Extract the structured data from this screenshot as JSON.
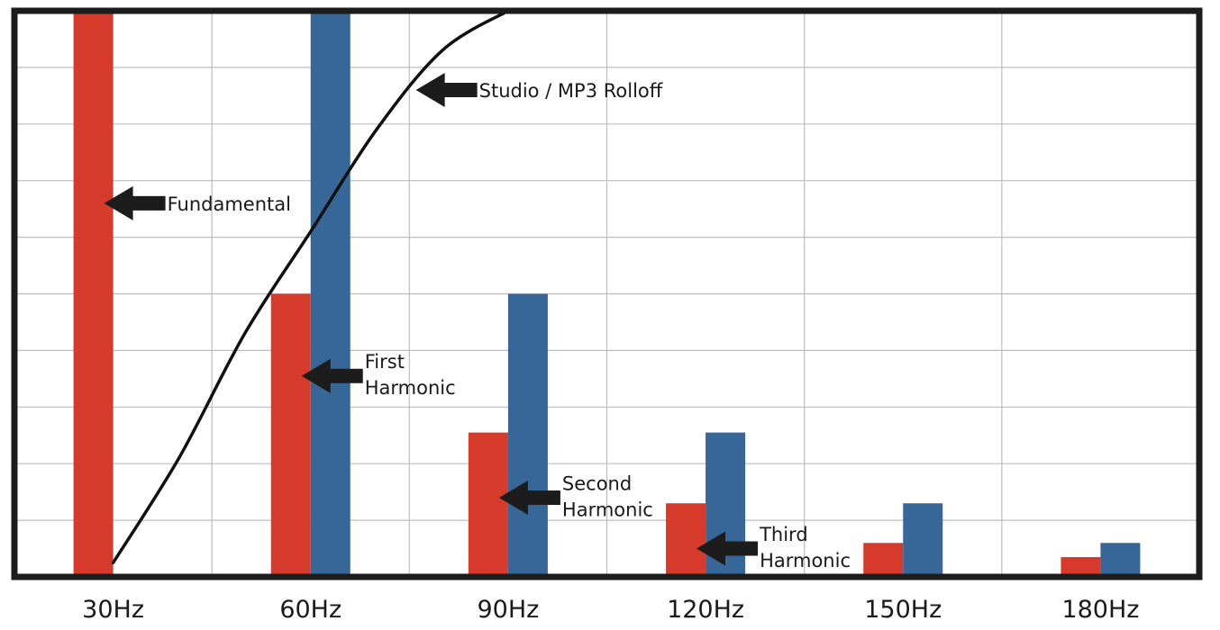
{
  "chart_data": {
    "type": "bar",
    "title": "",
    "xlabel": "",
    "ylabel": "",
    "categories": [
      "30Hz",
      "60Hz",
      "90Hz",
      "120Hz",
      "150Hz",
      "180Hz"
    ],
    "ylim": [
      0,
      10
    ],
    "grid": true,
    "series": [
      {
        "color": "#d63a2a",
        "values": [
          10,
          5,
          2.55,
          1.3,
          0.6,
          0.35
        ]
      },
      {
        "color": "#376698",
        "values": [
          null,
          10,
          5,
          2.55,
          1.3,
          0.6
        ]
      }
    ],
    "rolloff_curve": {
      "label": "Studio / MP3 Rolloff",
      "color": "#111111",
      "points": [
        [
          30,
          0.25
        ],
        [
          40,
          2.1
        ],
        [
          50,
          4.3
        ],
        [
          60,
          6.1
        ],
        [
          70,
          7.9
        ],
        [
          80,
          9.3
        ],
        [
          90,
          10.0
        ]
      ]
    },
    "annotations": [
      {
        "id": "fundamental",
        "lines": [
          "Fundamental"
        ],
        "x": 30,
        "y": 6.6
      },
      {
        "id": "first",
        "lines": [
          "First",
          "Harmonic"
        ],
        "x": 60,
        "y": 3.55
      },
      {
        "id": "second",
        "lines": [
          "Second",
          "Harmonic"
        ],
        "x": 90,
        "y": 1.4
      },
      {
        "id": "third",
        "lines": [
          "Third",
          "Harmonic"
        ],
        "x": 120,
        "y": 0.5
      },
      {
        "id": "rolloff",
        "lines": [
          "Studio / MP3 Rolloff"
        ],
        "x": 76,
        "y": 8.6
      }
    ]
  }
}
